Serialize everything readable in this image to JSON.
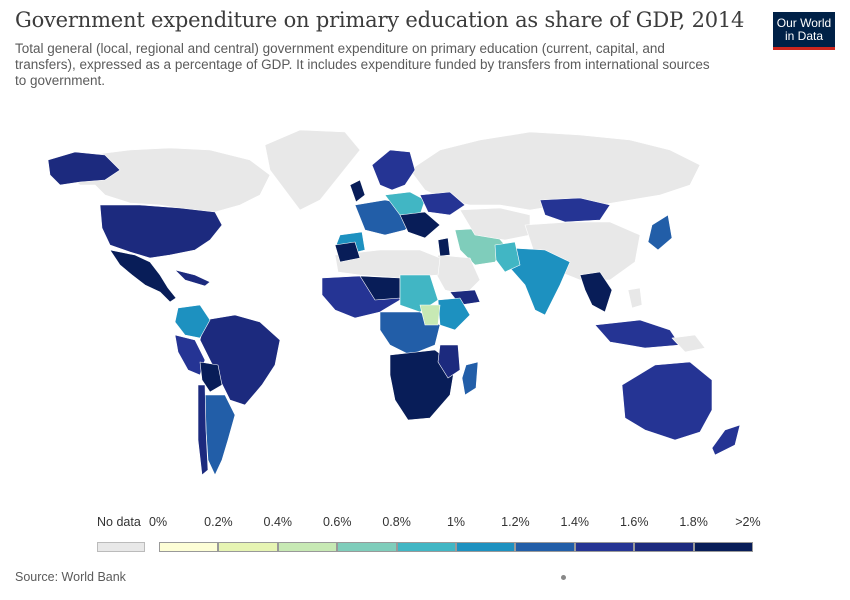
{
  "header": {
    "title": "Government expenditure on primary education as share of GDP, 2014",
    "subtitle": "Total general (local, regional and central) government expenditure on primary education (current, capital, and transfers), expressed as a percentage of GDP. It includes expenditure funded by transfers from international sources to government.",
    "logo_line1": "Our World",
    "logo_line2": "in Data"
  },
  "legend": {
    "no_data_label": "No data",
    "no_data_color": "#e8e8e8",
    "ticks": [
      "0%",
      "0.2%",
      "0.4%",
      "0.6%",
      "0.8%",
      "1%",
      "1.2%",
      "1.4%",
      "1.6%",
      "1.8%",
      ">2%"
    ],
    "colors": [
      "#fdfed6",
      "#e6f4b3",
      "#c7e9b4",
      "#7fcdbb",
      "#41b6c4",
      "#1d91c0",
      "#225ea8",
      "#253494",
      "#1c2a7e",
      "#081d58"
    ]
  },
  "footer": {
    "source": "Source: World Bank"
  }
}
